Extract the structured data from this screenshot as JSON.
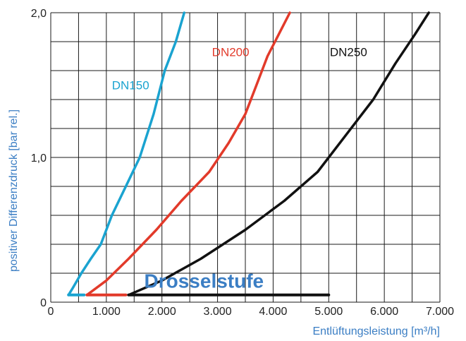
{
  "chart_data": {
    "type": "line",
    "title": "",
    "xlabel": "Entlüftungsleistung [m³/h]",
    "ylabel": "positiver Differenzdruck [bar rel.]",
    "xlim": [
      0,
      7000
    ],
    "ylim": [
      0,
      2.0
    ],
    "x_tick_labels": [
      "0",
      "1.000",
      "2.000",
      "3.000",
      "4.000",
      "5.000",
      "6.000",
      "7.000"
    ],
    "y_tick_labels": [
      {
        "value": 0,
        "label": "0"
      },
      {
        "value": 1.0,
        "label": "1,0"
      },
      {
        "value": 2.0,
        "label": "2,0"
      }
    ],
    "x_grid_step": 500,
    "y_grid_step": 0.2,
    "grid": true,
    "axis_label_color": "#3b7ec4",
    "series": [
      {
        "name": "DN150",
        "color": "#1aa3d0",
        "x": [
          320,
          400,
          550,
          720,
          900,
          1100,
          1350,
          1600,
          1850,
          2050,
          2250,
          2400
        ],
        "y": [
          0.05,
          0.1,
          0.2,
          0.3,
          0.4,
          0.6,
          0.8,
          1.0,
          1.3,
          1.6,
          1.8,
          2.0
        ]
      },
      {
        "name": "DN200",
        "color": "#e23a2a",
        "x": [
          650,
          1000,
          1400,
          1900,
          2350,
          2850,
          3200,
          3500,
          3700,
          3900,
          4100,
          4300
        ],
        "y": [
          0.05,
          0.15,
          0.3,
          0.5,
          0.7,
          0.9,
          1.1,
          1.3,
          1.5,
          1.7,
          1.85,
          2.0
        ]
      },
      {
        "name": "DN250",
        "color": "#111111",
        "x": [
          1400,
          2000,
          2700,
          3500,
          4200,
          4800,
          5300,
          5800,
          6200,
          6550,
          6800
        ],
        "y": [
          0.05,
          0.15,
          0.3,
          0.5,
          0.7,
          0.9,
          1.15,
          1.4,
          1.65,
          1.85,
          2.0
        ]
      }
    ],
    "throttle_series": [
      {
        "name": "DN150",
        "color": "#1aa3d0",
        "x": [
          320,
          600
        ],
        "y": [
          0.05,
          0.05
        ]
      },
      {
        "name": "DN200",
        "color": "#e23a2a",
        "x": [
          650,
          1350
        ],
        "y": [
          0.05,
          0.05
        ]
      },
      {
        "name": "DN250",
        "color": "#111111",
        "x": [
          1400,
          5000
        ],
        "y": [
          0.05,
          0.05
        ]
      }
    ],
    "annotation": {
      "text": "Drosselstufe",
      "color": "#3b7ec4",
      "x": 1300,
      "y": 0.12
    }
  }
}
